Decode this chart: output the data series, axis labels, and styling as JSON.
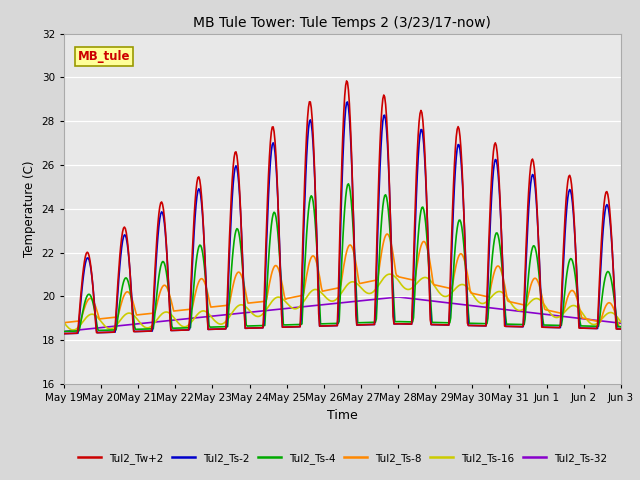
{
  "title": "MB Tule Tower: Tule Temps 2 (3/23/17-now)",
  "xlabel": "Time",
  "ylabel": "Temperature (C)",
  "ylim": [
    16,
    32
  ],
  "fig_bg_color": "#d8d8d8",
  "plot_bg_color": "#e8e8e8",
  "annotation_label": "MB_tule",
  "annotation_color": "#cc0000",
  "annotation_bg": "#ffff99",
  "annotation_border": "#999900",
  "series": {
    "Tul2_Tw+2": {
      "color": "#cc0000",
      "lw": 1.2
    },
    "Tul2_Ts-2": {
      "color": "#0000cc",
      "lw": 1.2
    },
    "Tul2_Ts-4": {
      "color": "#00aa00",
      "lw": 1.2
    },
    "Tul2_Ts-8": {
      "color": "#ff8800",
      "lw": 1.2
    },
    "Tul2_Ts-16": {
      "color": "#cccc00",
      "lw": 1.2
    },
    "Tul2_Ts-32": {
      "color": "#8800cc",
      "lw": 1.2
    }
  },
  "xtick_labels": [
    "May 19",
    "May 20",
    "May 21",
    "May 22",
    "May 23",
    "May 24",
    "May 25",
    "May 26",
    "May 27",
    "May 28",
    "May 29",
    "May 30",
    "May 31",
    "Jun 1",
    "Jun 2",
    "Jun 3"
  ],
  "ytick_positions": [
    16,
    18,
    20,
    22,
    24,
    26,
    28,
    30,
    32
  ]
}
